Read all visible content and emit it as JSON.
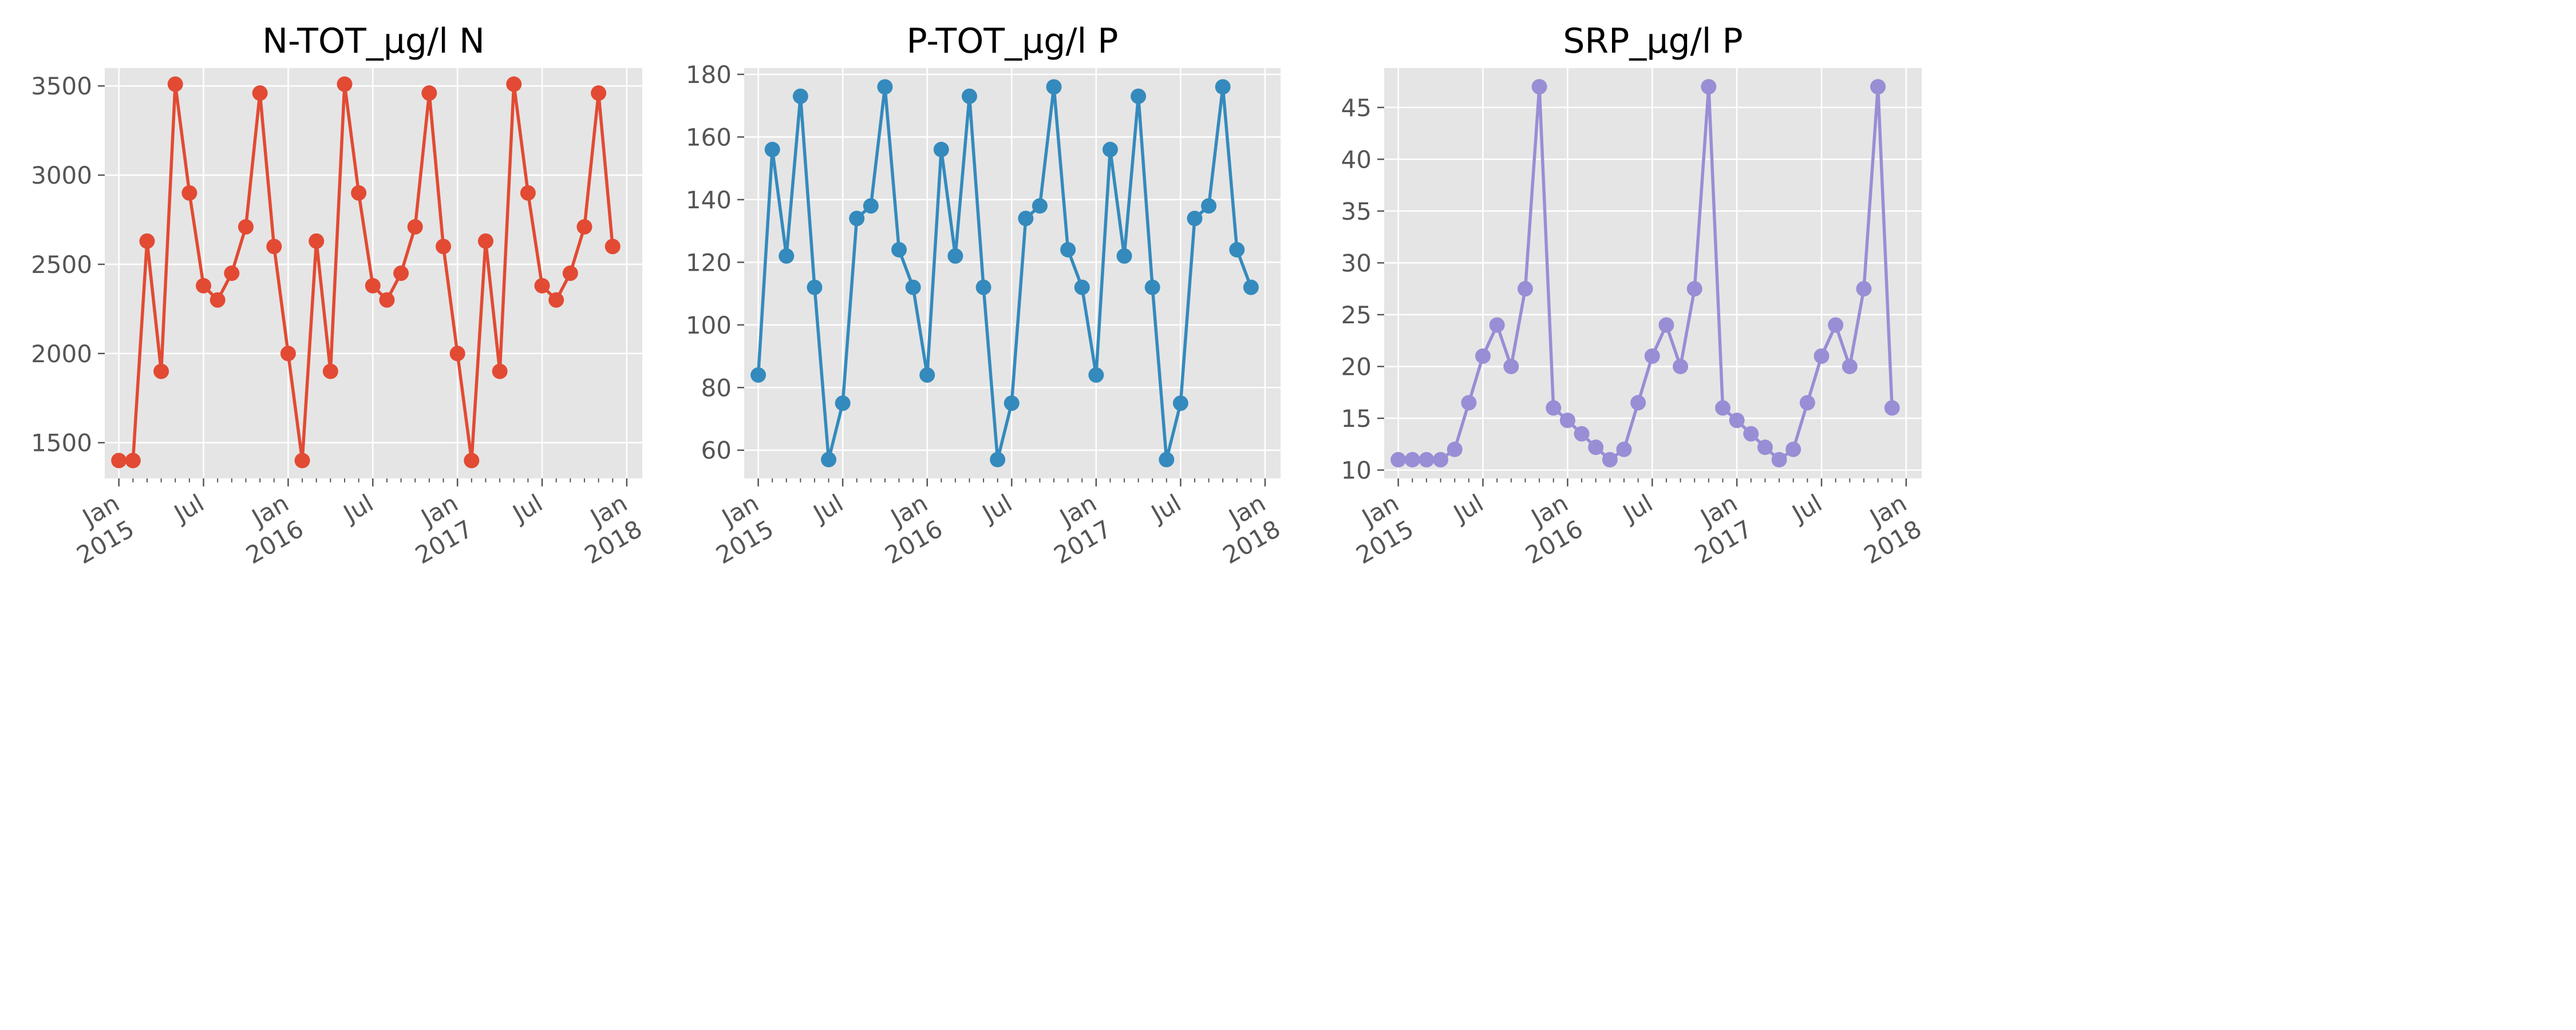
{
  "chart_data": [
    {
      "type": "line",
      "title": "N-TOT_µg/l N",
      "color": "#E24A33",
      "x": [
        "2015-01",
        "2015-02",
        "2015-03",
        "2015-04",
        "2015-05",
        "2015-06",
        "2015-07",
        "2015-08",
        "2015-09",
        "2015-10",
        "2015-11",
        "2015-12",
        "2016-01",
        "2016-02",
        "2016-03",
        "2016-04",
        "2016-05",
        "2016-06",
        "2016-07",
        "2016-08",
        "2016-09",
        "2016-10",
        "2016-11",
        "2016-12",
        "2017-01",
        "2017-02",
        "2017-03",
        "2017-04",
        "2017-05",
        "2017-06",
        "2017-07",
        "2017-08",
        "2017-09",
        "2017-10",
        "2017-11",
        "2017-12"
      ],
      "values": [
        1400,
        1400,
        2630,
        1900,
        3510,
        2900,
        2380,
        2300,
        2450,
        2710,
        3460,
        2600,
        2000,
        1400,
        2630,
        1900,
        3510,
        2900,
        2380,
        2300,
        2450,
        2710,
        3460,
        2600,
        2000,
        1400,
        2630,
        1900,
        3510,
        2900,
        2380,
        2300,
        2450,
        2710,
        3460,
        2600
      ],
      "ylim": [
        1300,
        3600
      ],
      "yticks": [
        1500,
        2000,
        2500,
        3000,
        3500
      ],
      "xticks": [
        {
          "date": "2015-01",
          "label": [
            "Jan",
            "2015"
          ]
        },
        {
          "date": "2015-07",
          "label": [
            "Jul"
          ]
        },
        {
          "date": "2016-01",
          "label": [
            "Jan",
            "2016"
          ]
        },
        {
          "date": "2016-07",
          "label": [
            "Jul"
          ]
        },
        {
          "date": "2017-01",
          "label": [
            "Jan",
            "2017"
          ]
        },
        {
          "date": "2017-07",
          "label": [
            "Jul"
          ]
        },
        {
          "date": "2018-01",
          "label": [
            "Jan",
            "2018"
          ]
        }
      ],
      "grid": true
    },
    {
      "type": "line",
      "title": "P-TOT_µg/l P",
      "color": "#348ABD",
      "x": [
        "2015-01",
        "2015-02",
        "2015-03",
        "2015-04",
        "2015-05",
        "2015-06",
        "2015-07",
        "2015-08",
        "2015-09",
        "2015-10",
        "2015-11",
        "2015-12",
        "2016-01",
        "2016-02",
        "2016-03",
        "2016-04",
        "2016-05",
        "2016-06",
        "2016-07",
        "2016-08",
        "2016-09",
        "2016-10",
        "2016-11",
        "2016-12",
        "2017-01",
        "2017-02",
        "2017-03",
        "2017-04",
        "2017-05",
        "2017-06",
        "2017-07",
        "2017-08",
        "2017-09",
        "2017-10",
        "2017-11",
        "2017-12"
      ],
      "values": [
        84,
        156,
        122,
        173,
        112,
        57,
        75,
        134,
        138,
        176,
        124,
        112,
        84,
        156,
        122,
        173,
        112,
        57,
        75,
        134,
        138,
        176,
        124,
        112,
        84,
        156,
        122,
        173,
        112,
        57,
        75,
        134,
        138,
        176,
        124,
        112
      ],
      "ylim": [
        51,
        182
      ],
      "yticks": [
        60,
        80,
        100,
        120,
        140,
        160,
        180
      ],
      "xticks": [
        {
          "date": "2015-01",
          "label": [
            "Jan",
            "2015"
          ]
        },
        {
          "date": "2015-07",
          "label": [
            "Jul"
          ]
        },
        {
          "date": "2016-01",
          "label": [
            "Jan",
            "2016"
          ]
        },
        {
          "date": "2016-07",
          "label": [
            "Jul"
          ]
        },
        {
          "date": "2017-01",
          "label": [
            "Jan",
            "2017"
          ]
        },
        {
          "date": "2017-07",
          "label": [
            "Jul"
          ]
        },
        {
          "date": "2018-01",
          "label": [
            "Jan",
            "2018"
          ]
        }
      ],
      "grid": true
    },
    {
      "type": "line",
      "title": "SRP_µg/l P",
      "color": "#988ED5",
      "x": [
        "2015-01",
        "2015-02",
        "2015-03",
        "2015-04",
        "2015-05",
        "2015-06",
        "2015-07",
        "2015-08",
        "2015-09",
        "2015-10",
        "2015-11",
        "2015-12",
        "2016-01",
        "2016-02",
        "2016-03",
        "2016-04",
        "2016-05",
        "2016-06",
        "2016-07",
        "2016-08",
        "2016-09",
        "2016-10",
        "2016-11",
        "2016-12",
        "2017-01",
        "2017-02",
        "2017-03",
        "2017-04",
        "2017-05",
        "2017-06",
        "2017-07",
        "2017-08",
        "2017-09",
        "2017-10",
        "2017-11",
        "2017-12"
      ],
      "values": [
        11,
        11,
        11,
        11,
        12,
        16.5,
        21,
        24,
        20,
        27.5,
        47,
        16,
        14.8,
        13.5,
        12.2,
        11,
        12,
        16.5,
        21,
        24,
        20,
        27.5,
        47,
        16,
        14.8,
        13.5,
        12.2,
        11,
        12,
        16.5,
        21,
        24,
        20,
        27.5,
        47,
        16
      ],
      "ylim": [
        9.2,
        48.8
      ],
      "yticks": [
        10,
        15,
        20,
        25,
        30,
        35,
        40,
        45
      ],
      "xticks": [
        {
          "date": "2015-01",
          "label": [
            "Jan",
            "2015"
          ]
        },
        {
          "date": "2015-07",
          "label": [
            "Jul"
          ]
        },
        {
          "date": "2016-01",
          "label": [
            "Jan",
            "2016"
          ]
        },
        {
          "date": "2016-07",
          "label": [
            "Jul"
          ]
        },
        {
          "date": "2017-01",
          "label": [
            "Jan",
            "2017"
          ]
        },
        {
          "date": "2017-07",
          "label": [
            "Jul"
          ]
        },
        {
          "date": "2018-01",
          "label": [
            "Jan",
            "2018"
          ]
        }
      ],
      "grid": true
    }
  ],
  "colors": {
    "plot_background": "#E5E5E5",
    "grid": "#FFFFFF",
    "tick_text": "#555555",
    "title_text": "#000000"
  }
}
